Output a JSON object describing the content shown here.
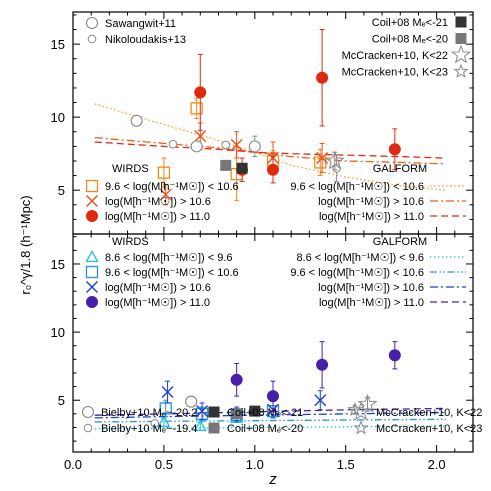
{
  "chart_data": {
    "type": "scatter",
    "xlabel": "z",
    "ylabel": "r₀^γ/1.8 (h⁻¹Mpc)",
    "xlim": [
      0.0,
      2.2
    ],
    "x_ticks": [
      "0.0",
      "0.5",
      "1.0",
      "1.5",
      "2.0"
    ],
    "panels": [
      {
        "id": "top",
        "ylim": [
          2.0,
          17.2
        ],
        "y_ticks": [
          "5",
          "10",
          "15"
        ],
        "y_tick_values": [
          5,
          10,
          15
        ],
        "legend_top_left": [
          "Sawangwit+11",
          "Nikoloudakis+13"
        ],
        "legend_top_right": [
          "Coil+08 Mₑ<-21",
          "Coil+08 Mₑ<-20",
          "McCracken+10, K<22",
          "McCracken+10, K<23"
        ],
        "wirds_header": "WIRDS",
        "galform_header": "GALFORM",
        "wirds_labels": [
          "9.6 < log(M[h⁻¹M☉]) < 10.6",
          "log(M[h⁻¹M☉]) > 10.6",
          "log(M[h⁻¹M☉]) > 11.0"
        ],
        "galform_labels": [
          "9.6 < log(M[h⁻¹M☉]) < 10.6",
          "log(M[h⁻¹M☉]) > 10.6",
          "log(M[h⁻¹M☉]) > 11.0"
        ],
        "series": [
          {
            "name": "9.6 < log(M[h⁻¹M☉]) < 10.6",
            "marker": "square",
            "color": "#f08a18",
            "points": [
              {
                "x": 0.5,
                "y": 6.2,
                "e": 1.0
              },
              {
                "x": 0.68,
                "y": 10.6,
                "e": 0.7
              },
              {
                "x": 0.9,
                "y": 6.1,
                "e": 1.8
              },
              {
                "x": 1.1,
                "y": 7.0,
                "e": 0.7
              },
              {
                "x": 1.36,
                "y": 6.9,
                "e": 0.9
              }
            ]
          },
          {
            "name": "log(M[h⁻¹M☉]) > 10.6",
            "marker": "x",
            "color": "#e8521c",
            "points": [
              {
                "x": 0.51,
                "y": 4.7,
                "e": 0.7
              },
              {
                "x": 0.7,
                "y": 8.7,
                "e": 0.9
              },
              {
                "x": 0.9,
                "y": 8.1,
                "e": 0.9
              },
              {
                "x": 1.1,
                "y": 7.2,
                "e": 1.1
              },
              {
                "x": 1.37,
                "y": 7.2,
                "e": 1.0
              }
            ]
          },
          {
            "name": "log(M[h⁻¹M☉]) > 11.0",
            "marker": "circle",
            "color": "#e02a10",
            "points": [
              {
                "x": 0.7,
                "y": 11.7,
                "e": 2.6
              },
              {
                "x": 0.93,
                "y": 6.4,
                "e": 0.8
              },
              {
                "x": 1.1,
                "y": 6.4,
                "e": 0.9
              },
              {
                "x": 1.37,
                "y": 12.7,
                "e": 3.3
              },
              {
                "x": 1.77,
                "y": 7.8,
                "e": 1.4
              }
            ]
          },
          {
            "name": "Sawangwit+11",
            "marker": "open-circle-large",
            "color": "#888888",
            "points": [
              {
                "x": 0.35,
                "y": 9.75,
                "e": 0.2
              },
              {
                "x": 0.68,
                "y": 8.0,
                "e": 0.2
              },
              {
                "x": 1.0,
                "y": 8.0,
                "e": 0.7
              }
            ]
          },
          {
            "name": "Nikoloudakis+13",
            "marker": "open-circle-small",
            "color": "#888888",
            "points": [
              {
                "x": 0.55,
                "y": 8.15,
                "e": 0.1
              },
              {
                "x": 0.84,
                "y": 8.1,
                "e": 0.1
              },
              {
                "x": 1.45,
                "y": 6.5,
                "e": 0.9
              }
            ]
          },
          {
            "name": "Coil+08 Mₑ<-21",
            "marker": "filled-square",
            "color": "#333333",
            "points": [
              {
                "x": 0.93,
                "y": 6.5,
                "e": 0.3
              }
            ]
          },
          {
            "name": "Coil+08 Mₑ<-20",
            "marker": "filled-square",
            "color": "#777777",
            "points": [
              {
                "x": 0.84,
                "y": 6.7,
                "e": 0.2
              }
            ]
          },
          {
            "name": "McCracken+10, K<22",
            "marker": "open-star",
            "color": "#888888",
            "points": [
              {
                "x": 1.44,
                "y": 7.0,
                "e": 0.6
              }
            ]
          }
        ],
        "model_lines": [
          {
            "name": "9.6 < log(M[h⁻¹M☉]) < 10.6",
            "style": "dotted",
            "color": "#f0a030",
            "x": [
              0.12,
              0.5,
              0.8,
              1.0,
              1.2,
              1.5,
              1.8,
              2.05
            ],
            "y": [
              10.9,
              9.5,
              8.4,
              7.6,
              6.7,
              5.9,
              5.3,
              5.0
            ]
          },
          {
            "name": "log(M[h⁻¹M☉]) > 10.6",
            "style": "dash-dot",
            "color": "#e8601c",
            "x": [
              0.12,
              0.5,
              0.8,
              1.0,
              1.2,
              1.5,
              1.8,
              2.05
            ],
            "y": [
              8.6,
              8.2,
              7.9,
              7.6,
              7.3,
              7.0,
              6.9,
              6.8
            ]
          },
          {
            "name": "log(M[h⁻¹M☉]) > 11.0",
            "style": "dashed",
            "color": "#e02a10",
            "x": [
              0.12,
              0.5,
              0.8,
              1.0,
              1.2,
              1.5,
              1.8,
              2.05
            ],
            "y": [
              8.3,
              8.0,
              7.8,
              7.6,
              7.5,
              7.4,
              7.3,
              7.2
            ]
          }
        ]
      },
      {
        "id": "bottom",
        "ylim": [
          1.2,
          17.2
        ],
        "y_ticks": [
          "5",
          "10",
          "15"
        ],
        "y_tick_values": [
          5,
          10,
          15
        ],
        "wirds_header": "WIRDS",
        "galform_header": "GALFORM",
        "wirds_labels": [
          "8.6 < log(M[h⁻¹M☉]) <  9.6",
          "9.6 < log(M[h⁻¹M☉]) < 10.6",
          "log(M[h⁻¹M☉]) > 10.6",
          "log(M[h⁻¹M☉]) > 11.0"
        ],
        "galform_labels": [
          "8.6 < log(M[h⁻¹M☉]) <  9.6",
          "9.6 < log(M[h⁻¹M☉]) < 10.6",
          "log(M[h⁻¹M☉]) > 10.6",
          "log(M[h⁻¹M☉]) > 11.0"
        ],
        "legend_bottom": [
          "Bielby+10 Mₑ~-20.2",
          "Coil+08 Mₑ<-21",
          "McCracken+10, K<22",
          "Bielby+10 Mₑ~-19.4",
          "Coil+08 Mₑ<-20",
          "McCracken+10, K<23"
        ],
        "series": [
          {
            "name": "8.6 < log(M[h⁻¹M☉]) <  9.6",
            "marker": "triangle",
            "color": "#20c0e0",
            "points": [
              {
                "x": 0.5,
                "y": 3.4,
                "e": 0.3
              },
              {
                "x": 0.7,
                "y": 3.1,
                "e": 0.3
              },
              {
                "x": 0.9,
                "y": 3.7,
                "e": 0.3
              }
            ]
          },
          {
            "name": "9.6 < log(M[h⁻¹M☉]) < 10.6",
            "marker": "square",
            "color": "#2a90e0",
            "points": [
              {
                "x": 0.51,
                "y": 4.4,
                "e": 0.6
              },
              {
                "x": 0.71,
                "y": 4.0,
                "e": 0.5
              },
              {
                "x": 0.9,
                "y": 3.9,
                "e": 0.5
              },
              {
                "x": 1.1,
                "y": 4.2,
                "e": 0.4
              }
            ]
          },
          {
            "name": "log(M[h⁻¹M☉]) > 10.6",
            "marker": "x",
            "color": "#1a40d8",
            "points": [
              {
                "x": 0.52,
                "y": 5.6,
                "e": 0.8
              },
              {
                "x": 0.71,
                "y": 4.2,
                "e": 0.6
              },
              {
                "x": 0.9,
                "y": 4.0,
                "e": 0.5
              },
              {
                "x": 1.1,
                "y": 4.3,
                "e": 0.6
              },
              {
                "x": 1.36,
                "y": 5.0,
                "e": 0.7
              }
            ]
          },
          {
            "name": "log(M[h⁻¹M☉]) > 11.0",
            "marker": "circle",
            "color": "#4820a8",
            "points": [
              {
                "x": 0.9,
                "y": 6.5,
                "e": 1.2
              },
              {
                "x": 1.1,
                "y": 5.3,
                "e": 1.1
              },
              {
                "x": 1.37,
                "y": 7.6,
                "e": 1.7
              },
              {
                "x": 1.77,
                "y": 8.3,
                "e": 1.0
              }
            ]
          },
          {
            "name": "Bielby+10 Mₑ~-20.2",
            "marker": "open-circle-large",
            "color": "#888888",
            "points": [
              {
                "x": 0.65,
                "y": 4.9,
                "e": 0.2
              }
            ]
          },
          {
            "name": "Bielby+10 Mₑ~-19.4",
            "marker": "open-circle-small",
            "color": "#888888",
            "points": [
              {
                "x": 0.45,
                "y": 3.3,
                "e": 0.2
              }
            ]
          },
          {
            "name": "Coil+08 Mₑ<-21",
            "marker": "filled-square",
            "color": "#333333",
            "points": [
              {
                "x": 1.0,
                "y": 4.2,
                "e": 0.2
              }
            ]
          },
          {
            "name": "Coil+08 Mₑ<-20",
            "marker": "filled-square",
            "color": "#777777",
            "points": [
              {
                "x": 0.9,
                "y": 4.0,
                "e": 0.2
              }
            ]
          },
          {
            "name": "McCracken+10, K<22",
            "marker": "open-star",
            "color": "#888888",
            "points": [
              {
                "x": 1.62,
                "y": 4.7,
                "e": 0.5
              }
            ]
          },
          {
            "name": "McCracken+10, K<23",
            "marker": "open-star-small",
            "color": "#888888",
            "points": [
              {
                "x": 1.55,
                "y": 4.3,
                "e": 0.3
              }
            ]
          }
        ],
        "model_lines": [
          {
            "name": "8.6 < log(M[h⁻¹M☉]) <  9.6",
            "style": "dotted",
            "color": "#20c0e0",
            "x": [
              0.12,
              0.5,
              1.0,
              1.5,
              2.05
            ],
            "y": [
              2.9,
              2.95,
              3.0,
              3.05,
              3.1
            ]
          },
          {
            "name": "9.6 < log(M[h⁻¹M☉]) < 10.6",
            "style": "dash-dot-dot",
            "color": "#2a90e0",
            "x": [
              0.12,
              0.5,
              1.0,
              1.5,
              2.05
            ],
            "y": [
              3.4,
              3.45,
              3.5,
              3.55,
              3.6
            ]
          },
          {
            "name": "log(M[h⁻¹M☉]) > 10.6",
            "style": "dash-dot",
            "color": "#1a40d8",
            "x": [
              0.12,
              0.5,
              1.0,
              1.5,
              2.05
            ],
            "y": [
              3.7,
              3.8,
              3.9,
              4.0,
              4.1
            ]
          },
          {
            "name": "log(M[h⁻¹M☉]) > 11.0",
            "style": "dashed",
            "color": "#4820a8",
            "x": [
              0.12,
              0.5,
              1.0,
              1.5,
              2.05
            ],
            "y": [
              3.9,
              4.0,
              4.15,
              4.3,
              4.4
            ]
          }
        ]
      }
    ]
  }
}
